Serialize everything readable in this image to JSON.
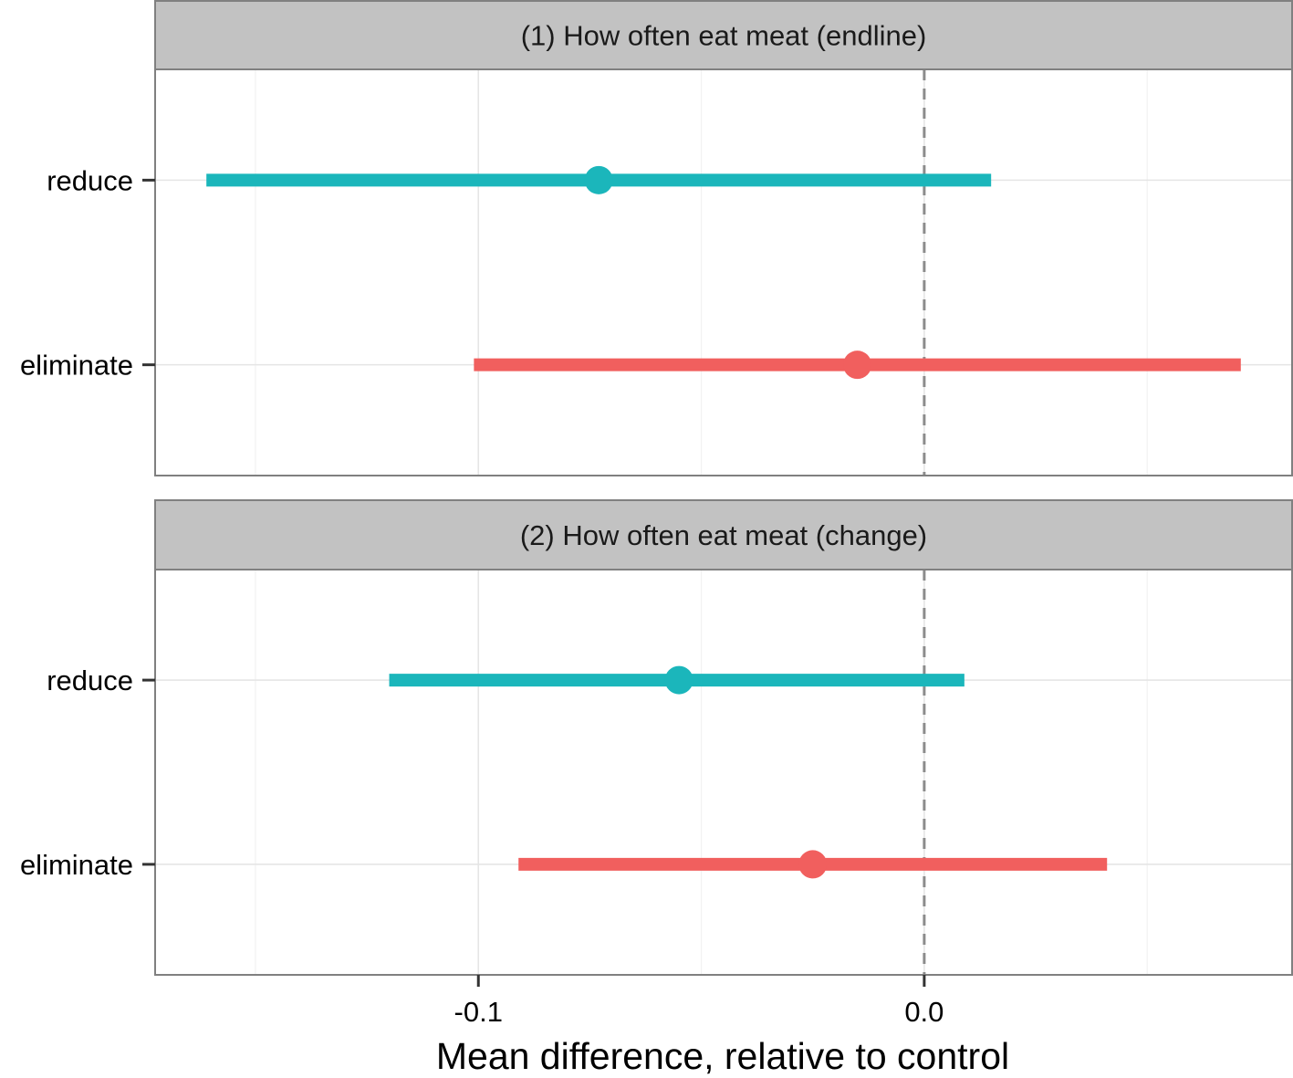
{
  "chart_data": [
    {
      "type": "forest",
      "title": "(1) How often eat meat (endline)",
      "categories": [
        "reduce",
        "eliminate"
      ],
      "series": [
        {
          "name": "reduce",
          "estimate": -0.073,
          "ci_low": -0.161,
          "ci_high": 0.015
        },
        {
          "name": "eliminate",
          "estimate": -0.015,
          "ci_low": -0.101,
          "ci_high": 0.071
        }
      ]
    },
    {
      "type": "forest",
      "title": "(2) How often eat meat (change)",
      "categories": [
        "reduce",
        "eliminate"
      ],
      "series": [
        {
          "name": "reduce",
          "estimate": -0.055,
          "ci_low": -0.12,
          "ci_high": 0.009
        },
        {
          "name": "eliminate",
          "estimate": -0.025,
          "ci_low": -0.091,
          "ci_high": 0.041
        }
      ]
    }
  ],
  "xaxis": {
    "label": "Mean difference, relative to control",
    "ticks": [
      -0.1,
      0.0
    ],
    "tick_labels": [
      "-0.1",
      "0.0"
    ],
    "minor_ticks": [
      -0.15,
      -0.05,
      0.05
    ],
    "xlim": [
      -0.1725,
      0.0825
    ],
    "reference_line": 0.0
  },
  "colors": {
    "reduce": "#1BB6BB",
    "eliminate": "#F15F5E",
    "strip_bg": "#C2C2C2",
    "panel_border": "#808080",
    "grid_major": "#E5E5E5",
    "grid_minor": "#F2F2F2",
    "reference_line": "#8C8C8C"
  },
  "grid": true
}
